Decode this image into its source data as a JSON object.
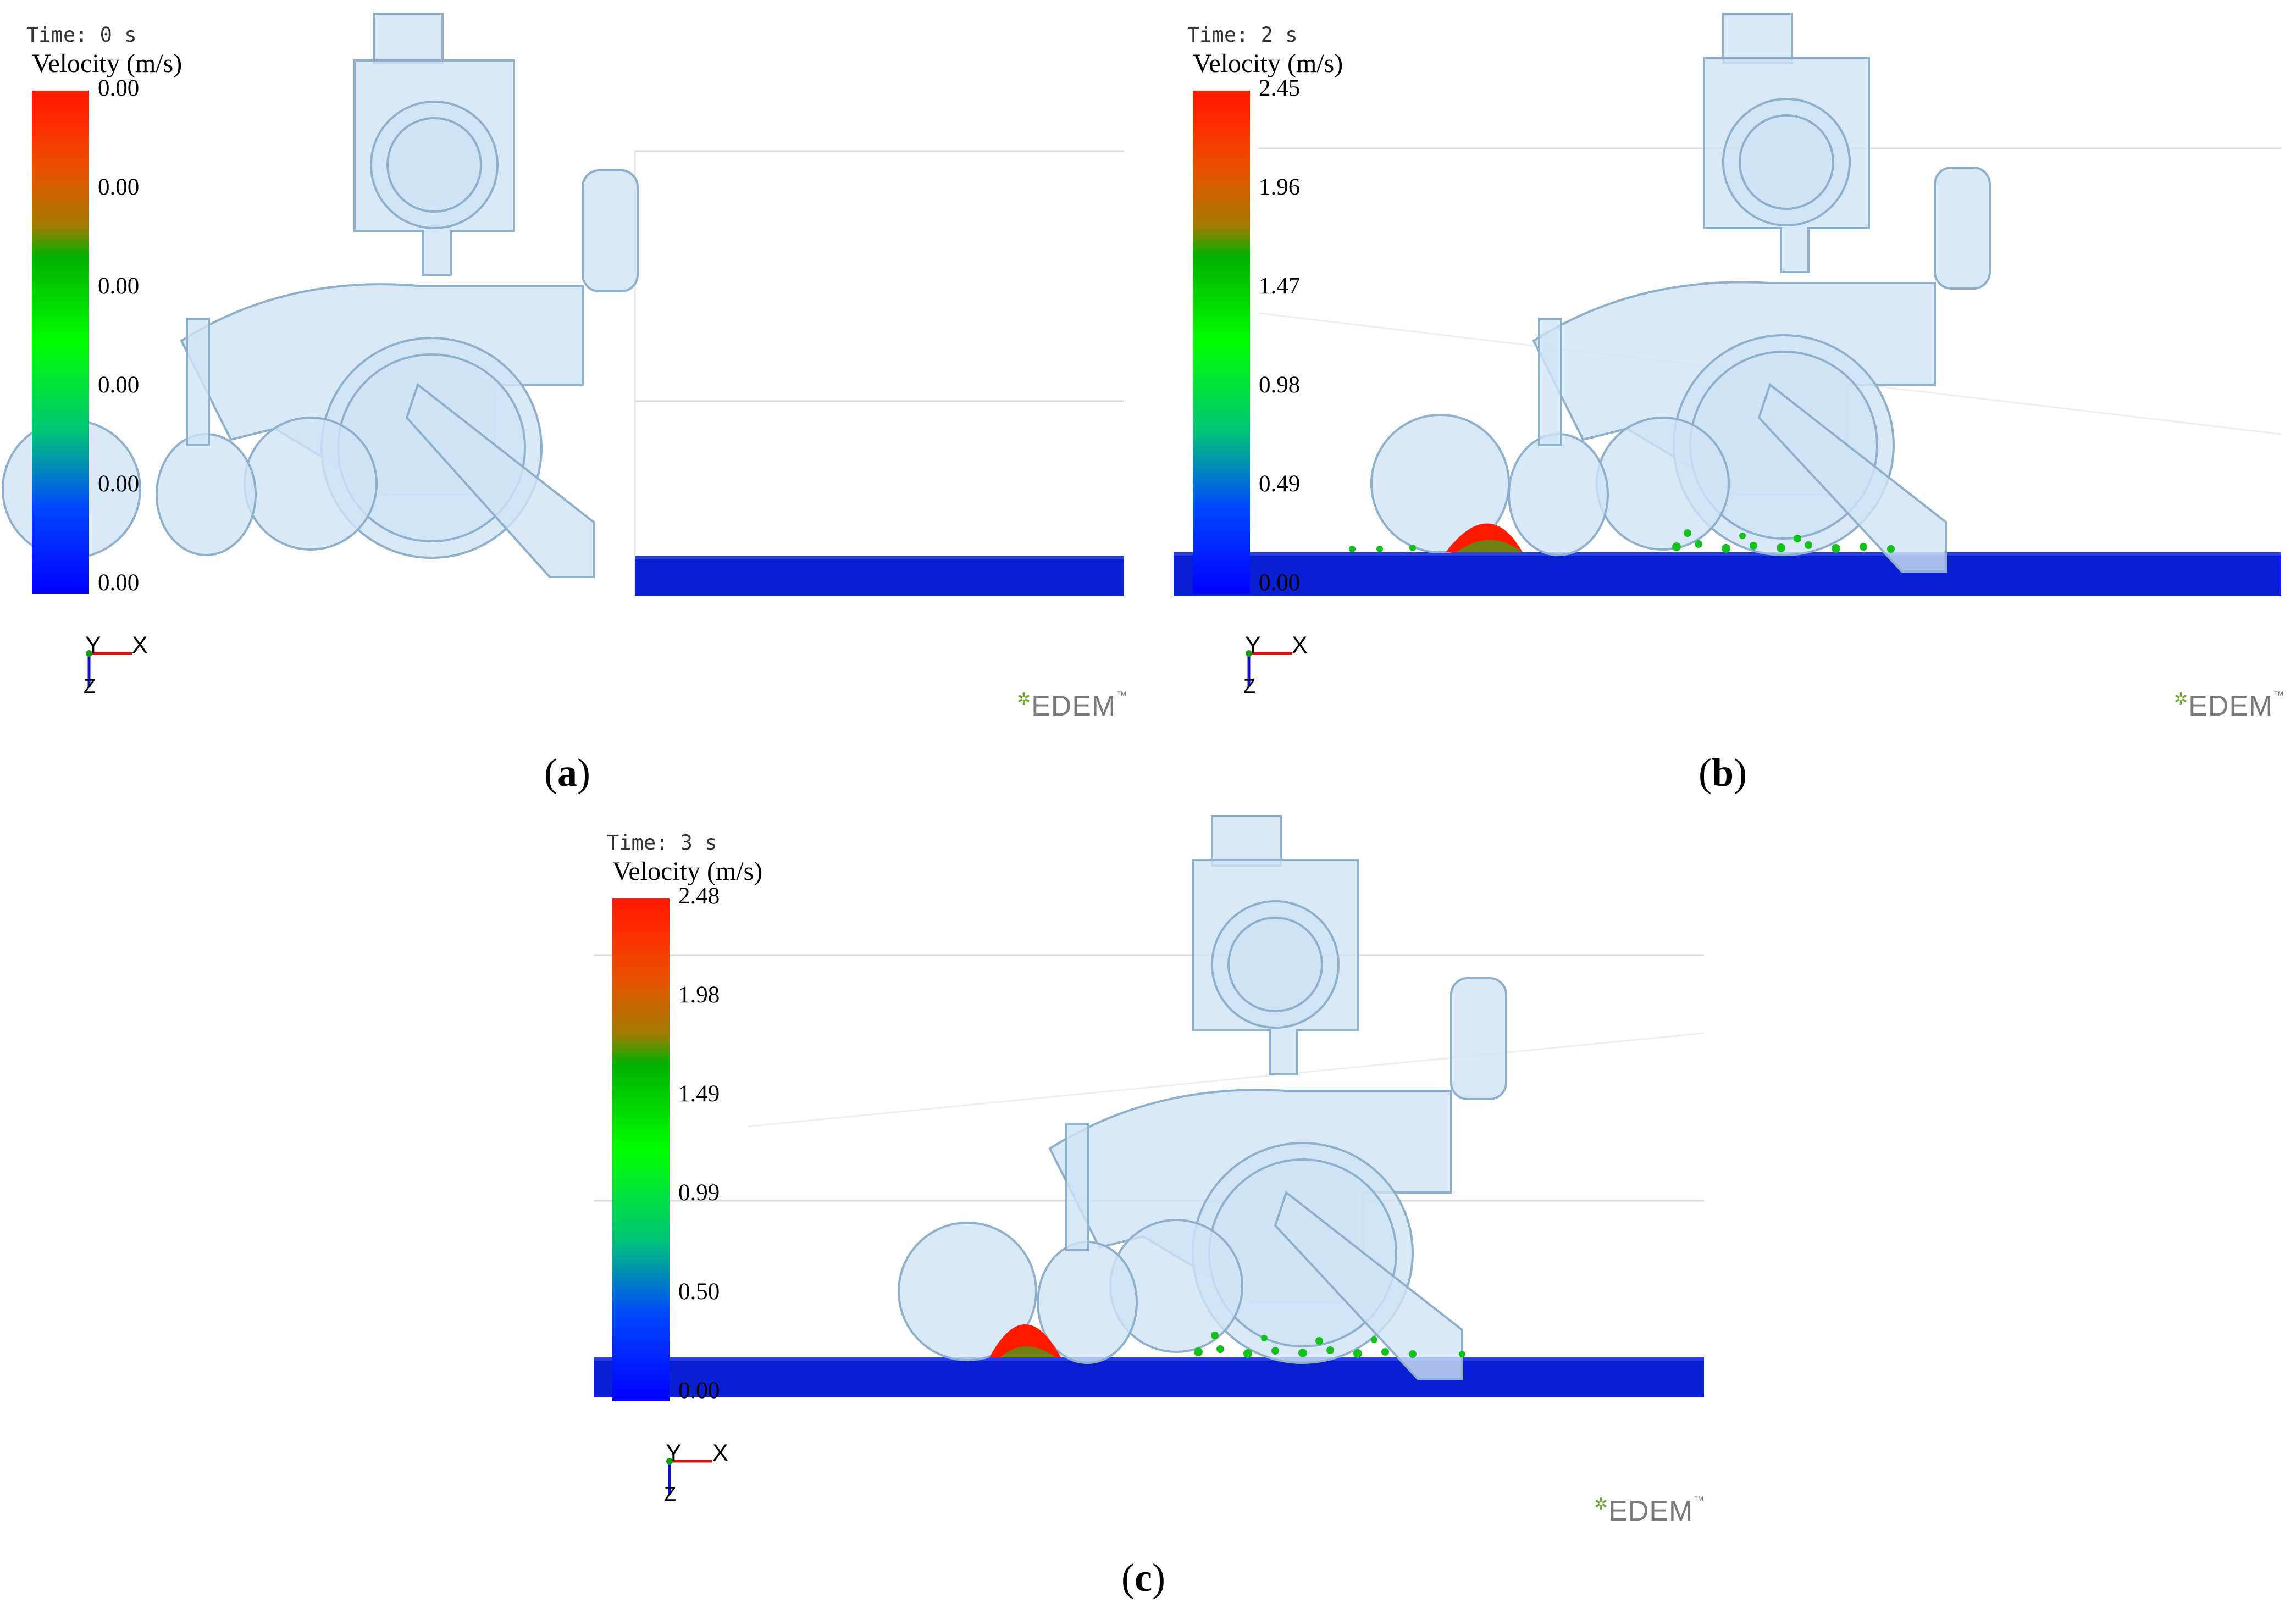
{
  "panels": [
    {
      "time_label": "Time: 0 s",
      "colorbar": {
        "title": "Velocity (m/s)",
        "ticks": [
          "0.00",
          "0.00",
          "0.00",
          "0.00",
          "0.00",
          "0.00"
        ]
      },
      "axes": {
        "y": "Y",
        "x": "X",
        "z": "Z"
      },
      "logo": "EDEM",
      "caption_open": "(",
      "caption_letter": "a",
      "caption_close": ")"
    },
    {
      "time_label": "Time: 2 s",
      "colorbar": {
        "title": "Velocity (m/s)",
        "ticks": [
          "2.45",
          "1.96",
          "1.47",
          "0.98",
          "0.49",
          "0.00"
        ]
      },
      "axes": {
        "y": "Y",
        "x": "X",
        "z": "Z"
      },
      "logo": "EDEM",
      "caption_open": "(",
      "caption_letter": "b",
      "caption_close": ")"
    },
    {
      "time_label": "Time: 3 s",
      "colorbar": {
        "title": "Velocity (m/s)",
        "ticks": [
          "2.48",
          "1.98",
          "1.49",
          "0.99",
          "0.50",
          "0.00"
        ]
      },
      "axes": {
        "y": "Y",
        "x": "X",
        "z": "Z"
      },
      "logo": "EDEM",
      "caption_open": "(",
      "caption_letter": "c",
      "caption_close": ")"
    }
  ],
  "colors": {
    "machine_fill": "#cfe3f5",
    "machine_stroke": "#8fb0cc",
    "soil": "#0a1ed2",
    "fast_particles": "#ff1a00",
    "mid_particles": "#12c21a"
  }
}
